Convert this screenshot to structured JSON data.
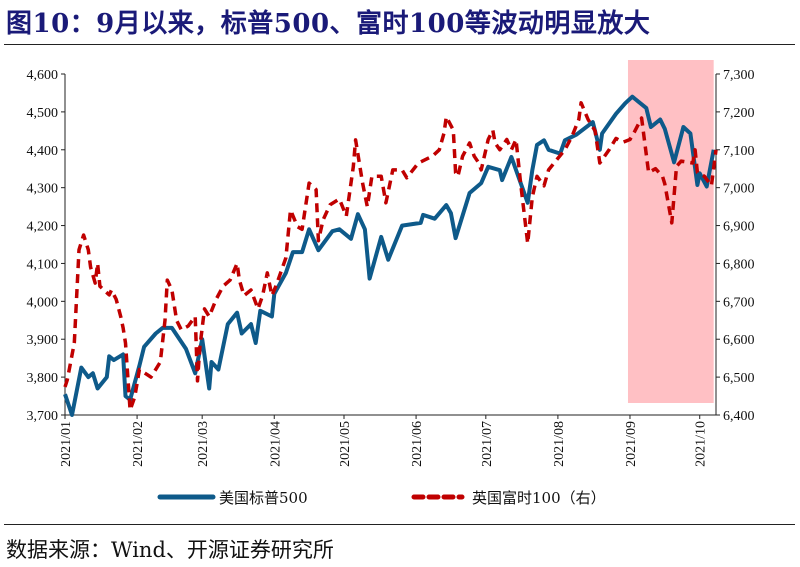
{
  "title": "图10：9月以来，标普500、富时100等波动明显放大",
  "source": "数据来源：Wind、开源证券研究所",
  "colors": {
    "title": "#1a1a78",
    "sp500": "#0e5a8a",
    "sp500_highlight": "#2e3a6e",
    "ftse100": "#c00000",
    "shade": "#ffc0c4"
  },
  "chart_data": {
    "type": "line",
    "xlim": [
      "2021-01-01",
      "2021-10-08"
    ],
    "x_tick_labels": [
      "2021/01",
      "2021/02",
      "2021/03",
      "2021/04",
      "2021/05",
      "2021/06",
      "2021/07",
      "2021/08",
      "2021/09",
      "2021/10"
    ],
    "x_ticks": [
      "2021-01-01",
      "2021-02-01",
      "2021-03-01",
      "2021-04-01",
      "2021-05-01",
      "2021-06-01",
      "2021-07-01",
      "2021-08-01",
      "2021-09-01",
      "2021-10-01"
    ],
    "y_left": {
      "ylim": [
        3700,
        4600
      ],
      "ticks": [
        "3,700",
        "3,800",
        "3,900",
        "4,000",
        "4,100",
        "4,200",
        "4,300",
        "4,400",
        "4,500",
        "4,600"
      ]
    },
    "y_right": {
      "ylim": [
        6400,
        7300
      ],
      "ticks": [
        "6,400",
        "6,500",
        "6,600",
        "6,700",
        "6,800",
        "6,900",
        "7,000",
        "7,100",
        "7,200",
        "7,300"
      ]
    },
    "grid": false,
    "legend_position": "bottom",
    "highlight_band": {
      "from": "2021-09-01",
      "to": "2021-10-07"
    },
    "series": [
      {
        "name": "美国标普500",
        "axis": "left",
        "style": "solid",
        "points": [
          [
            "2021-01-01",
            3755
          ],
          [
            "2021-01-04",
            3700
          ],
          [
            "2021-01-08",
            3825
          ],
          [
            "2021-01-11",
            3800
          ],
          [
            "2021-01-13",
            3810
          ],
          [
            "2021-01-15",
            3770
          ],
          [
            "2021-01-19",
            3800
          ],
          [
            "2021-01-20",
            3855
          ],
          [
            "2021-01-22",
            3845
          ],
          [
            "2021-01-26",
            3860
          ],
          [
            "2021-01-27",
            3750
          ],
          [
            "2021-01-29",
            3740
          ],
          [
            "2021-02-02",
            3830
          ],
          [
            "2021-02-04",
            3880
          ],
          [
            "2021-02-09",
            3915
          ],
          [
            "2021-02-12",
            3930
          ],
          [
            "2021-02-16",
            3930
          ],
          [
            "2021-02-22",
            3875
          ],
          [
            "2021-02-26",
            3810
          ],
          [
            "2021-03-01",
            3900
          ],
          [
            "2021-03-04",
            3770
          ],
          [
            "2021-03-05",
            3840
          ],
          [
            "2021-03-08",
            3820
          ],
          [
            "2021-03-12",
            3940
          ],
          [
            "2021-03-16",
            3970
          ],
          [
            "2021-03-18",
            3915
          ],
          [
            "2021-03-22",
            3940
          ],
          [
            "2021-03-24",
            3890
          ],
          [
            "2021-03-26",
            3975
          ],
          [
            "2021-03-31",
            3960
          ],
          [
            "2021-04-01",
            4020
          ],
          [
            "2021-04-06",
            4075
          ],
          [
            "2021-04-09",
            4130
          ],
          [
            "2021-04-13",
            4130
          ],
          [
            "2021-04-16",
            4190
          ],
          [
            "2021-04-20",
            4135
          ],
          [
            "2021-04-26",
            4185
          ],
          [
            "2021-04-29",
            4190
          ],
          [
            "2021-05-04",
            4165
          ],
          [
            "2021-05-07",
            4230
          ],
          [
            "2021-05-10",
            4190
          ],
          [
            "2021-05-12",
            4060
          ],
          [
            "2021-05-17",
            4170
          ],
          [
            "2021-05-20",
            4110
          ],
          [
            "2021-05-26",
            4200
          ],
          [
            "2021-06-03",
            4207
          ],
          [
            "2021-06-04",
            4228
          ],
          [
            "2021-06-09",
            4218
          ],
          [
            "2021-06-14",
            4254
          ],
          [
            "2021-06-16",
            4233
          ],
          [
            "2021-06-18",
            4167
          ],
          [
            "2021-06-24",
            4286
          ],
          [
            "2021-06-29",
            4312
          ],
          [
            "2021-07-02",
            4355
          ],
          [
            "2021-07-07",
            4346
          ],
          [
            "2021-07-08",
            4320
          ],
          [
            "2021-07-12",
            4381
          ],
          [
            "2021-07-19",
            4260
          ],
          [
            "2021-07-21",
            4346
          ],
          [
            "2021-07-23",
            4413
          ],
          [
            "2021-07-26",
            4425
          ],
          [
            "2021-07-28",
            4400
          ],
          [
            "2021-08-02",
            4390
          ],
          [
            "2021-08-04",
            4425
          ],
          [
            "2021-08-09",
            4440
          ],
          [
            "2021-08-16",
            4473
          ],
          [
            "2021-08-19",
            4400
          ],
          [
            "2021-08-20",
            4443
          ],
          [
            "2021-08-26",
            4495
          ],
          [
            "2021-08-30",
            4523
          ],
          [
            "2021-09-02",
            4540
          ],
          [
            "2021-09-08",
            4510
          ],
          [
            "2021-09-10",
            4460
          ],
          [
            "2021-09-14",
            4480
          ],
          [
            "2021-09-16",
            4455
          ],
          [
            "2021-09-20",
            4367
          ],
          [
            "2021-09-24",
            4460
          ],
          [
            "2021-09-27",
            4443
          ],
          [
            "2021-09-30",
            4307
          ],
          [
            "2021-10-01",
            4338
          ],
          [
            "2021-10-04",
            4303
          ],
          [
            "2021-10-07",
            4400
          ]
        ]
      },
      {
        "name": "英国富时100（右）",
        "axis": "right",
        "style": "dashed",
        "points": [
          [
            "2021-01-01",
            6474
          ],
          [
            "2021-01-02",
            6493
          ],
          [
            "2021-01-05",
            6590
          ],
          [
            "2021-01-07",
            6836
          ],
          [
            "2021-01-09",
            6875
          ],
          [
            "2021-01-11",
            6836
          ],
          [
            "2021-01-12",
            6790
          ],
          [
            "2021-01-14",
            6748
          ],
          [
            "2021-01-15",
            6800
          ],
          [
            "2021-01-16",
            6740
          ],
          [
            "2021-01-20",
            6717
          ],
          [
            "2021-01-21",
            6730
          ],
          [
            "2021-01-23",
            6705
          ],
          [
            "2021-01-25",
            6659
          ],
          [
            "2021-01-26",
            6630
          ],
          [
            "2021-01-27",
            6590
          ],
          [
            "2021-01-29",
            6413
          ],
          [
            "2021-01-31",
            6448
          ],
          [
            "2021-02-02",
            6520
          ],
          [
            "2021-02-07",
            6500
          ],
          [
            "2021-02-11",
            6540
          ],
          [
            "2021-02-13",
            6650
          ],
          [
            "2021-02-14",
            6756
          ],
          [
            "2021-02-16",
            6730
          ],
          [
            "2021-02-18",
            6650
          ],
          [
            "2021-02-20",
            6625
          ],
          [
            "2021-02-23",
            6635
          ],
          [
            "2021-02-26",
            6660
          ],
          [
            "2021-02-27",
            6490
          ],
          [
            "2021-02-28",
            6580
          ],
          [
            "2021-03-02",
            6680
          ],
          [
            "2021-03-04",
            6660
          ],
          [
            "2021-03-07",
            6705
          ],
          [
            "2021-03-10",
            6740
          ],
          [
            "2021-03-13",
            6756
          ],
          [
            "2021-03-16",
            6800
          ],
          [
            "2021-03-17",
            6756
          ],
          [
            "2021-03-19",
            6715
          ],
          [
            "2021-03-22",
            6730
          ],
          [
            "2021-03-25",
            6680
          ],
          [
            "2021-03-27",
            6715
          ],
          [
            "2021-03-29",
            6775
          ],
          [
            "2021-03-31",
            6715
          ],
          [
            "2021-04-02",
            6745
          ],
          [
            "2021-04-06",
            6815
          ],
          [
            "2021-04-08",
            6941
          ],
          [
            "2021-04-11",
            6897
          ],
          [
            "2021-04-13",
            6890
          ],
          [
            "2021-04-16",
            7012
          ],
          [
            "2021-04-19",
            6995
          ],
          [
            "2021-04-20",
            6860
          ],
          [
            "2021-04-22",
            6915
          ],
          [
            "2021-04-25",
            6955
          ],
          [
            "2021-04-29",
            6970
          ],
          [
            "2021-05-02",
            6925
          ],
          [
            "2021-05-05",
            7055
          ],
          [
            "2021-05-06",
            7126
          ],
          [
            "2021-05-09",
            7012
          ],
          [
            "2021-05-11",
            6950
          ],
          [
            "2021-05-13",
            7030
          ],
          [
            "2021-05-17",
            7030
          ],
          [
            "2021-05-19",
            6960
          ],
          [
            "2021-05-22",
            7047
          ],
          [
            "2021-05-26",
            7047
          ],
          [
            "2021-05-28",
            7026
          ],
          [
            "2021-06-02",
            7065
          ],
          [
            "2021-06-08",
            7083
          ],
          [
            "2021-06-11",
            7100
          ],
          [
            "2021-06-13",
            7144
          ],
          [
            "2021-06-14",
            7187
          ],
          [
            "2021-06-17",
            7152
          ],
          [
            "2021-06-18",
            7039
          ],
          [
            "2021-06-19",
            7030
          ],
          [
            "2021-06-21",
            7083
          ],
          [
            "2021-06-24",
            7118
          ],
          [
            "2021-06-26",
            7083
          ],
          [
            "2021-06-28",
            7065
          ],
          [
            "2021-06-29",
            7047
          ],
          [
            "2021-07-02",
            7127
          ],
          [
            "2021-07-04",
            7152
          ],
          [
            "2021-07-05",
            7118
          ],
          [
            "2021-07-07",
            7100
          ],
          [
            "2021-07-10",
            7127
          ],
          [
            "2021-07-12",
            7100
          ],
          [
            "2021-07-14",
            7127
          ],
          [
            "2021-07-16",
            7010
          ],
          [
            "2021-07-19",
            6853
          ],
          [
            "2021-07-21",
            6975
          ],
          [
            "2021-07-23",
            7030
          ],
          [
            "2021-07-26",
            7005
          ],
          [
            "2021-07-28",
            7047
          ],
          [
            "2021-07-31",
            7070
          ],
          [
            "2021-08-04",
            7100
          ],
          [
            "2021-08-07",
            7135
          ],
          [
            "2021-08-10",
            7180
          ],
          [
            "2021-08-11",
            7224
          ],
          [
            "2021-08-14",
            7180
          ],
          [
            "2021-08-17",
            7150
          ],
          [
            "2021-08-19",
            7065
          ],
          [
            "2021-08-23",
            7100
          ],
          [
            "2021-08-26",
            7130
          ],
          [
            "2021-08-29",
            7120
          ],
          [
            "2021-09-01",
            7127
          ],
          [
            "2021-09-03",
            7148
          ],
          [
            "2021-09-06",
            7184
          ],
          [
            "2021-09-09",
            7040
          ],
          [
            "2021-09-12",
            7050
          ],
          [
            "2021-09-15",
            7030
          ],
          [
            "2021-09-16",
            7010
          ],
          [
            "2021-09-19",
            6907
          ],
          [
            "2021-09-21",
            7056
          ],
          [
            "2021-09-23",
            7070
          ],
          [
            "2021-09-28",
            7065
          ],
          [
            "2021-09-29",
            7100
          ],
          [
            "2021-09-30",
            7040
          ],
          [
            "2021-10-03",
            7030
          ],
          [
            "2021-10-06",
            7005
          ],
          [
            "2021-10-08",
            7100
          ]
        ]
      }
    ]
  }
}
